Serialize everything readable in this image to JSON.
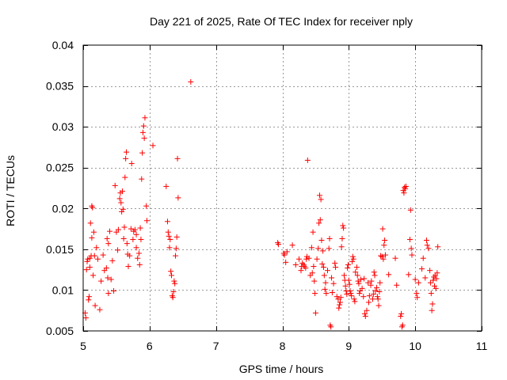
{
  "chart_data": {
    "type": "scatter",
    "title": "Day 221 of 2025, Rate Of TEC Index for receiver nply",
    "xlabel": "GPS time / hours",
    "ylabel": "ROTI / TECUs",
    "xlim": [
      5,
      11
    ],
    "ylim": [
      0.005,
      0.04
    ],
    "xticks": [
      5,
      6,
      7,
      8,
      9,
      10,
      11
    ],
    "xtick_labels": [
      "5",
      "6",
      "7",
      "8",
      "9",
      "10",
      "11"
    ],
    "yticks": [
      0.005,
      0.01,
      0.015,
      0.02,
      0.025,
      0.03,
      0.035,
      0.04
    ],
    "ytick_labels": [
      "0.005",
      "0.01",
      "0.015",
      "0.02",
      "0.025",
      "0.03",
      "0.035",
      "0.04"
    ],
    "grid": true,
    "marker": "+",
    "color": "#ff0000",
    "series": [
      {
        "name": "ROTI",
        "points": [
          [
            5.03,
            0.0072
          ],
          [
            5.04,
            0.0066
          ],
          [
            5.05,
            0.0125
          ],
          [
            5.06,
            0.0135
          ],
          [
            5.07,
            0.0138
          ],
          [
            5.08,
            0.0088
          ],
          [
            5.09,
            0.0092
          ],
          [
            5.1,
            0.0128
          ],
          [
            5.1,
            0.0139
          ],
          [
            5.11,
            0.0182
          ],
          [
            5.12,
            0.0142
          ],
          [
            5.13,
            0.0164
          ],
          [
            5.13,
            0.0203
          ],
          [
            5.14,
            0.0201
          ],
          [
            5.15,
            0.0118
          ],
          [
            5.16,
            0.0171
          ],
          [
            5.17,
            0.0142
          ],
          [
            5.18,
            0.0081
          ],
          [
            5.2,
            0.0152
          ],
          [
            5.22,
            0.0138
          ],
          [
            5.25,
            0.0076
          ],
          [
            5.27,
            0.0111
          ],
          [
            5.3,
            0.0143
          ],
          [
            5.32,
            0.0124
          ],
          [
            5.35,
            0.0127
          ],
          [
            5.36,
            0.0163
          ],
          [
            5.37,
            0.0115
          ],
          [
            5.38,
            0.0157
          ],
          [
            5.38,
            0.0096
          ],
          [
            5.4,
            0.0172
          ],
          [
            5.42,
            0.0113
          ],
          [
            5.44,
            0.0136
          ],
          [
            5.46,
            0.0099
          ],
          [
            5.48,
            0.0228
          ],
          [
            5.5,
            0.0171
          ],
          [
            5.52,
            0.0149
          ],
          [
            5.53,
            0.0174
          ],
          [
            5.55,
            0.0212
          ],
          [
            5.56,
            0.0219
          ],
          [
            5.57,
            0.0207
          ],
          [
            5.58,
            0.0196
          ],
          [
            5.59,
            0.0221
          ],
          [
            5.6,
            0.0199
          ],
          [
            5.61,
            0.0163
          ],
          [
            5.62,
            0.0177
          ],
          [
            5.63,
            0.0238
          ],
          [
            5.64,
            0.0261
          ],
          [
            5.65,
            0.0269
          ],
          [
            5.66,
            0.0157
          ],
          [
            5.67,
            0.0144
          ],
          [
            5.68,
            0.0129
          ],
          [
            5.7,
            0.0142
          ],
          [
            5.72,
            0.0175
          ],
          [
            5.73,
            0.0255
          ],
          [
            5.75,
            0.0162
          ],
          [
            5.76,
            0.0172
          ],
          [
            5.78,
            0.0174
          ],
          [
            5.8,
            0.0168
          ],
          [
            5.8,
            0.0152
          ],
          [
            5.82,
            0.0139
          ],
          [
            5.84,
            0.0145
          ],
          [
            5.85,
            0.0131
          ],
          [
            5.86,
            0.0176
          ],
          [
            5.87,
            0.0162
          ],
          [
            5.88,
            0.0236
          ],
          [
            5.89,
            0.0268
          ],
          [
            5.9,
            0.0293
          ],
          [
            5.91,
            0.0301
          ],
          [
            5.92,
            0.0286
          ],
          [
            5.93,
            0.0311
          ],
          [
            5.95,
            0.0203
          ],
          [
            5.96,
            0.0185
          ],
          [
            6.05,
            0.0277
          ],
          [
            6.25,
            0.0227
          ],
          [
            6.27,
            0.0184
          ],
          [
            6.28,
            0.0171
          ],
          [
            6.29,
            0.0166
          ],
          [
            6.3,
            0.0152
          ],
          [
            6.31,
            0.0162
          ],
          [
            6.32,
            0.0123
          ],
          [
            6.33,
            0.0118
          ],
          [
            6.34,
            0.0093
          ],
          [
            6.35,
            0.0091
          ],
          [
            6.36,
            0.0098
          ],
          [
            6.37,
            0.0111
          ],
          [
            6.38,
            0.0108
          ],
          [
            6.39,
            0.0142
          ],
          [
            6.4,
            0.0151
          ],
          [
            6.41,
            0.0165
          ],
          [
            6.42,
            0.0261
          ],
          [
            6.43,
            0.0213
          ],
          [
            6.62,
            0.0355
          ],
          [
            7.93,
            0.0158
          ],
          [
            7.94,
            0.0156
          ],
          [
            8.02,
            0.0145
          ],
          [
            8.03,
            0.0143
          ],
          [
            8.05,
            0.0134
          ],
          [
            8.07,
            0.0147
          ],
          [
            8.15,
            0.0155
          ],
          [
            8.2,
            0.0131
          ],
          [
            8.25,
            0.0138
          ],
          [
            8.28,
            0.0124
          ],
          [
            8.29,
            0.0129
          ],
          [
            8.3,
            0.0133
          ],
          [
            8.32,
            0.0131
          ],
          [
            8.33,
            0.0129
          ],
          [
            8.35,
            0.0127
          ],
          [
            8.36,
            0.0138
          ],
          [
            8.37,
            0.0141
          ],
          [
            8.38,
            0.0259
          ],
          [
            8.4,
            0.0139
          ],
          [
            8.42,
            0.0118
          ],
          [
            8.44,
            0.0152
          ],
          [
            8.45,
            0.0121
          ],
          [
            8.46,
            0.0171
          ],
          [
            8.47,
            0.0129
          ],
          [
            8.48,
            0.0111
          ],
          [
            8.49,
            0.0096
          ],
          [
            8.5,
            0.0072
          ],
          [
            8.52,
            0.0138
          ],
          [
            8.54,
            0.0151
          ],
          [
            8.55,
            0.0182
          ],
          [
            8.56,
            0.0216
          ],
          [
            8.57,
            0.0186
          ],
          [
            8.58,
            0.0211
          ],
          [
            8.59,
            0.0161
          ],
          [
            8.6,
            0.0132
          ],
          [
            8.61,
            0.0148
          ],
          [
            8.62,
            0.0128
          ],
          [
            8.63,
            0.0118
          ],
          [
            8.64,
            0.0101
          ],
          [
            8.65,
            0.0109
          ],
          [
            8.66,
            0.0096
          ],
          [
            8.68,
            0.0124
          ],
          [
            8.7,
            0.0151
          ],
          [
            8.71,
            0.0163
          ],
          [
            8.72,
            0.0057
          ],
          [
            8.73,
            0.0055
          ],
          [
            8.74,
            0.0115
          ],
          [
            8.75,
            0.0097
          ],
          [
            8.77,
            0.0108
          ],
          [
            8.79,
            0.0133
          ],
          [
            8.8,
            0.0128
          ],
          [
            8.82,
            0.0092
          ],
          [
            8.84,
            0.0089
          ],
          [
            8.85,
            0.0078
          ],
          [
            8.86,
            0.0082
          ],
          [
            8.87,
            0.0085
          ],
          [
            8.88,
            0.0091
          ],
          [
            8.89,
            0.0153
          ],
          [
            8.9,
            0.0163
          ],
          [
            8.91,
            0.0179
          ],
          [
            8.92,
            0.0176
          ],
          [
            8.93,
            0.0118
          ],
          [
            8.94,
            0.0112
          ],
          [
            8.95,
            0.0105
          ],
          [
            8.96,
            0.0099
          ],
          [
            8.97,
            0.0095
          ],
          [
            8.98,
            0.0127
          ],
          [
            8.99,
            0.0131
          ],
          [
            9.0,
            0.0112
          ],
          [
            9.01,
            0.0107
          ],
          [
            9.02,
            0.0099
          ],
          [
            9.03,
            0.0096
          ],
          [
            9.04,
            0.0093
          ],
          [
            9.05,
            0.0135
          ],
          [
            9.06,
            0.0141
          ],
          [
            9.07,
            0.0138
          ],
          [
            9.08,
            0.0089
          ],
          [
            9.09,
            0.0086
          ],
          [
            9.1,
            0.0122
          ],
          [
            9.12,
            0.0128
          ],
          [
            9.13,
            0.0118
          ],
          [
            9.14,
            0.0111
          ],
          [
            9.15,
            0.0108
          ],
          [
            9.16,
            0.0096
          ],
          [
            9.17,
            0.0099
          ],
          [
            9.18,
            0.0113
          ],
          [
            9.2,
            0.0102
          ],
          [
            9.22,
            0.0092
          ],
          [
            9.23,
            0.0114
          ],
          [
            9.24,
            0.0071
          ],
          [
            9.25,
            0.0068
          ],
          [
            9.27,
            0.0075
          ],
          [
            9.29,
            0.0109
          ],
          [
            9.3,
            0.0085
          ],
          [
            9.31,
            0.0093
          ],
          [
            9.33,
            0.0106
          ],
          [
            9.34,
            0.0111
          ],
          [
            9.36,
            0.0089
          ],
          [
            9.37,
            0.0095
          ],
          [
            9.38,
            0.0122
          ],
          [
            9.39,
            0.0118
          ],
          [
            9.4,
            0.0099
          ],
          [
            9.42,
            0.0103
          ],
          [
            9.43,
            0.0092
          ],
          [
            9.44,
            0.0089
          ],
          [
            9.45,
            0.0081
          ],
          [
            9.46,
            0.0098
          ],
          [
            9.47,
            0.0109
          ],
          [
            9.48,
            0.0142
          ],
          [
            9.5,
            0.0141
          ],
          [
            9.51,
            0.0175
          ],
          [
            9.52,
            0.0138
          ],
          [
            9.53,
            0.0155
          ],
          [
            9.54,
            0.0161
          ],
          [
            9.55,
            0.0143
          ],
          [
            9.6,
            0.0119
          ],
          [
            9.7,
            0.0139
          ],
          [
            9.72,
            0.0106
          ],
          [
            9.78,
            0.0068
          ],
          [
            9.79,
            0.0071
          ],
          [
            9.8,
            0.0055
          ],
          [
            9.81,
            0.0057
          ],
          [
            9.82,
            0.0222
          ],
          [
            9.83,
            0.0219
          ],
          [
            9.84,
            0.0226
          ],
          [
            9.85,
            0.0224
          ],
          [
            9.86,
            0.0227
          ],
          [
            9.9,
            0.0119
          ],
          [
            9.92,
            0.0162
          ],
          [
            9.93,
            0.0198
          ],
          [
            9.94,
            0.0151
          ],
          [
            9.95,
            0.0143
          ],
          [
            10.0,
            0.0113
          ],
          [
            10.02,
            0.0096
          ],
          [
            10.03,
            0.0091
          ],
          [
            10.05,
            0.0109
          ],
          [
            10.1,
            0.0126
          ],
          [
            10.12,
            0.0139
          ],
          [
            10.15,
            0.0115
          ],
          [
            10.17,
            0.0161
          ],
          [
            10.18,
            0.0155
          ],
          [
            10.2,
            0.0151
          ],
          [
            10.22,
            0.0124
          ],
          [
            10.23,
            0.0109
          ],
          [
            10.24,
            0.0096
          ],
          [
            10.25,
            0.0075
          ],
          [
            10.26,
            0.0083
          ],
          [
            10.27,
            0.0112
          ],
          [
            10.28,
            0.0116
          ],
          [
            10.29,
            0.0105
          ],
          [
            10.3,
            0.0118
          ],
          [
            10.31,
            0.0102
          ],
          [
            10.32,
            0.0114
          ],
          [
            10.33,
            0.0121
          ],
          [
            10.34,
            0.0153
          ]
        ]
      }
    ]
  }
}
